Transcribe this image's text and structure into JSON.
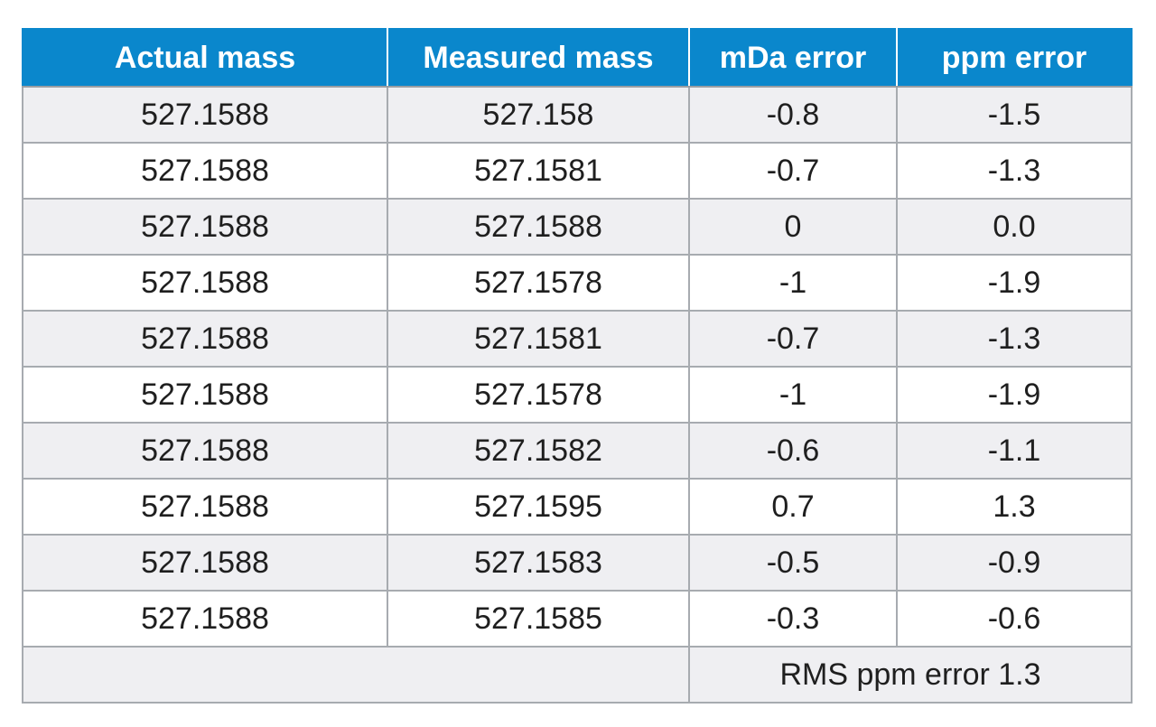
{
  "table": {
    "headers": [
      "Actual mass",
      "Measured mass",
      "mDa error",
      "ppm error"
    ],
    "rows": [
      [
        "527.1588",
        "527.158",
        "-0.8",
        "-1.5"
      ],
      [
        "527.1588",
        "527.1581",
        "-0.7",
        "-1.3"
      ],
      [
        "527.1588",
        "527.1588",
        "0",
        "0.0"
      ],
      [
        "527.1588",
        "527.1578",
        "-1",
        "-1.9"
      ],
      [
        "527.1588",
        "527.1581",
        "-0.7",
        "-1.3"
      ],
      [
        "527.1588",
        "527.1578",
        "-1",
        "-1.9"
      ],
      [
        "527.1588",
        "527.1582",
        "-0.6",
        "-1.1"
      ],
      [
        "527.1588",
        "527.1595",
        "0.7",
        "1.3"
      ],
      [
        "527.1588",
        "527.1583",
        "-0.5",
        "-0.9"
      ],
      [
        "527.1588",
        "527.1585",
        "-0.3",
        "-0.6"
      ]
    ],
    "footer": "RMS ppm error 1.3"
  },
  "colors": {
    "header_bg": "#0a87cc",
    "header_text": "#ffffff",
    "row_alt_bg": "#efeff2",
    "border": "#a7abb0"
  }
}
